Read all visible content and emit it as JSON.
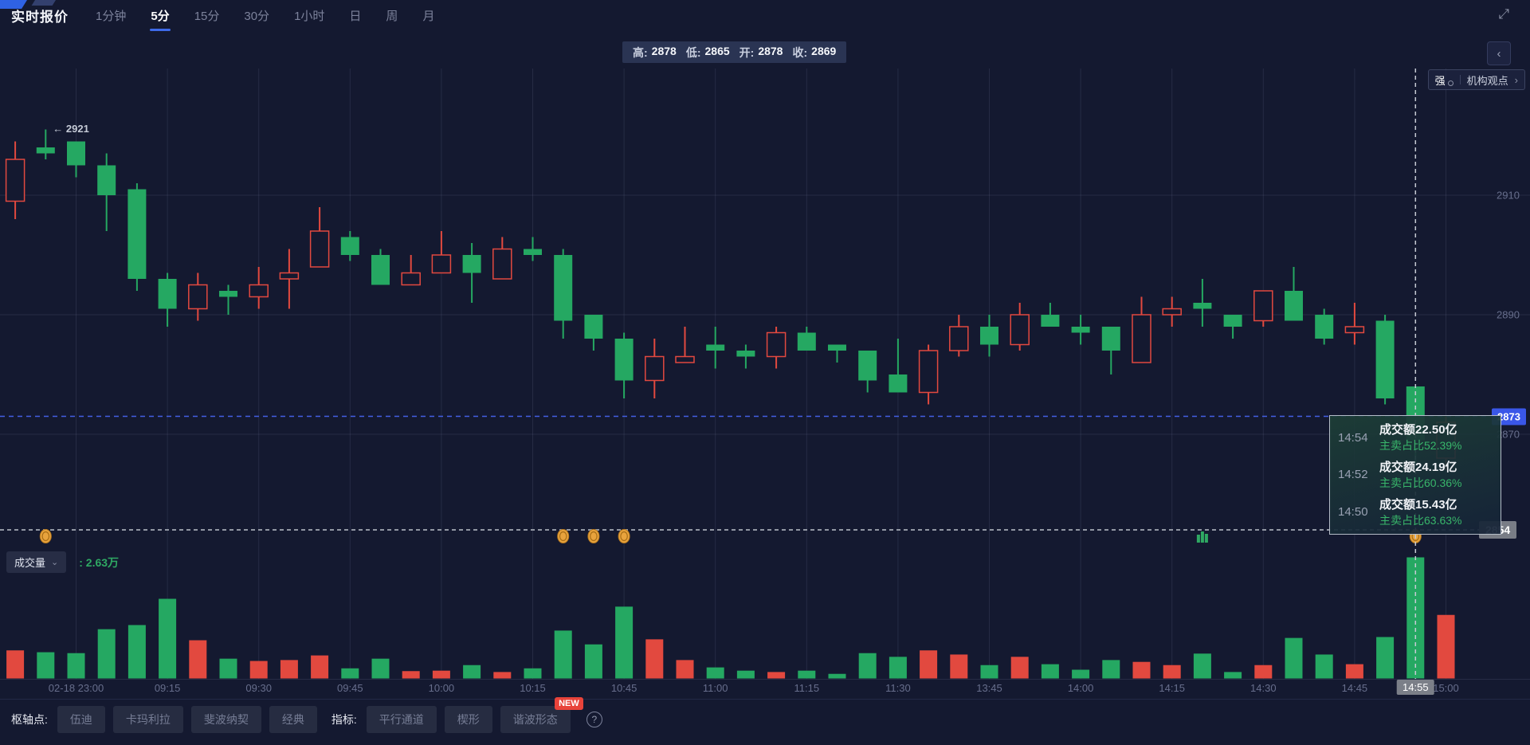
{
  "header": {
    "title": "实时报价",
    "tabs": [
      {
        "label": "1分钟",
        "active": false
      },
      {
        "label": "5分",
        "active": true
      },
      {
        "label": "15分",
        "active": false
      },
      {
        "label": "30分",
        "active": false
      },
      {
        "label": "1小时",
        "active": false
      },
      {
        "label": "日",
        "active": false
      },
      {
        "label": "周",
        "active": false
      },
      {
        "label": "月",
        "active": false
      }
    ]
  },
  "icons": {
    "expand": "⤢",
    "collapse": "‹",
    "dropdown": "⌄",
    "link_arrow": "›",
    "help": "?",
    "anno_arrow": "←"
  },
  "ohlc_bar": {
    "items": [
      {
        "label": "高:",
        "value": "2878"
      },
      {
        "label": "低:",
        "value": "2865"
      },
      {
        "label": "开:",
        "value": "2878"
      },
      {
        "label": "收:",
        "value": "2869"
      }
    ]
  },
  "top_right": {
    "strength_badge": "强",
    "institution_link": "机构观点"
  },
  "volume_header": {
    "label": "成交量",
    "value": ": 2.63万"
  },
  "tooltip": {
    "rows": [
      {
        "time": "14:54",
        "amount": "成交额22.50亿",
        "ratio": "主卖占比52.39%"
      },
      {
        "time": "14:52",
        "amount": "成交额24.19亿",
        "ratio": "主卖占比60.36%"
      },
      {
        "time": "14:50",
        "amount": "成交额15.43亿",
        "ratio": "主卖占比63.63%"
      }
    ]
  },
  "time_axis": {
    "labels": [
      "02-18 23:00",
      "09:15",
      "09:30",
      "09:45",
      "10:00",
      "10:15",
      "10:45",
      "11:00",
      "11:15",
      "11:30",
      "13:45",
      "14:00",
      "14:15",
      "14:30",
      "14:45",
      "15:00"
    ],
    "crosshair_label": "14:55"
  },
  "toolbar": {
    "pivot_label": "枢轴点:",
    "pivot_buttons": [
      "伍迪",
      "卡玛利拉",
      "斐波纳契",
      "经典"
    ],
    "indicator_label": "指标:",
    "indicator_buttons": [
      {
        "label": "平行通道"
      },
      {
        "label": "楔形"
      },
      {
        "label": "谐波形态",
        "badge": "NEW"
      }
    ]
  },
  "chart_data": {
    "type": "candlestick_with_volume",
    "interval": "5分",
    "columns": [
      "time",
      "open",
      "high",
      "low",
      "close",
      "volume_wan"
    ],
    "candles": [
      [
        "22:50",
        2909,
        2919,
        2906,
        2916,
        0.61
      ],
      [
        "22:55",
        2918,
        2921,
        2916,
        2917,
        0.57
      ],
      [
        "23:00",
        2919,
        2919,
        2913,
        2915,
        0.55
      ],
      [
        "09:05",
        2915,
        2917,
        2904,
        2910,
        1.07
      ],
      [
        "09:10",
        2911,
        2912,
        2894,
        2896,
        1.16
      ],
      [
        "09:15",
        2896,
        2897,
        2888,
        2891,
        1.73
      ],
      [
        "09:20",
        2891,
        2897,
        2889,
        2895,
        0.83
      ],
      [
        "09:25",
        2894,
        2895,
        2890,
        2893,
        0.43
      ],
      [
        "09:30",
        2893,
        2898,
        2891,
        2895,
        0.38
      ],
      [
        "09:35",
        2896,
        2901,
        2891,
        2897,
        0.4
      ],
      [
        "09:40",
        2898,
        2908,
        2898,
        2904,
        0.5
      ],
      [
        "09:45",
        2903,
        2904,
        2899,
        2900,
        0.22
      ],
      [
        "09:50",
        2900,
        2901,
        2895,
        2895,
        0.43
      ],
      [
        "09:55",
        2895,
        2900,
        2895,
        2897,
        0.16
      ],
      [
        "10:00",
        2897,
        2904,
        2897,
        2900,
        0.17
      ],
      [
        "10:05",
        2900,
        2902,
        2892,
        2897,
        0.29
      ],
      [
        "10:10",
        2896,
        2903,
        2896,
        2901,
        0.14
      ],
      [
        "10:15",
        2901,
        2903,
        2899,
        2900,
        0.22
      ],
      [
        "10:35",
        2900,
        2901,
        2886,
        2889,
        1.04
      ],
      [
        "10:40",
        2890,
        2890,
        2884,
        2886,
        0.74
      ],
      [
        "10:45",
        2886,
        2887,
        2876,
        2879,
        1.56
      ],
      [
        "10:50",
        2879,
        2886,
        2876,
        2883,
        0.85
      ],
      [
        "10:55",
        2882,
        2888,
        2882,
        2883,
        0.4
      ],
      [
        "11:00",
        2885,
        2888,
        2881,
        2884,
        0.24
      ],
      [
        "11:05",
        2884,
        2885,
        2881,
        2883,
        0.17
      ],
      [
        "11:10",
        2883,
        2888,
        2881,
        2887,
        0.14
      ],
      [
        "11:15",
        2887,
        2888,
        2884,
        2884,
        0.17
      ],
      [
        "11:20",
        2885,
        2885,
        2882,
        2884,
        0.1
      ],
      [
        "11:25",
        2884,
        2884,
        2877,
        2879,
        0.55
      ],
      [
        "11:30",
        2880,
        2886,
        2877,
        2877,
        0.47
      ],
      [
        "13:35",
        2877,
        2885,
        2875,
        2884,
        0.61
      ],
      [
        "13:40",
        2884,
        2890,
        2883,
        2888,
        0.52
      ],
      [
        "13:45",
        2888,
        2890,
        2883,
        2885,
        0.29
      ],
      [
        "13:50",
        2885,
        2892,
        2884,
        2890,
        0.47
      ],
      [
        "13:55",
        2890,
        2892,
        2888,
        2888,
        0.31
      ],
      [
        "14:00",
        2888,
        2890,
        2885,
        2887,
        0.19
      ],
      [
        "14:05",
        2888,
        2888,
        2880,
        2884,
        0.4
      ],
      [
        "14:10",
        2882,
        2893,
        2882,
        2890,
        0.36
      ],
      [
        "14:15",
        2890,
        2893,
        2888,
        2891,
        0.29
      ],
      [
        "14:20",
        2892,
        2896,
        2888,
        2891,
        0.54
      ],
      [
        "14:25",
        2890,
        2890,
        2886,
        2888,
        0.14
      ],
      [
        "14:30",
        2889,
        2894,
        2888,
        2894,
        0.29
      ],
      [
        "14:35",
        2894,
        2898,
        2889,
        2889,
        0.88
      ],
      [
        "14:40",
        2890,
        2891,
        2885,
        2886,
        0.52
      ],
      [
        "14:45",
        2887,
        2892,
        2885,
        2888,
        0.31
      ],
      [
        "14:50",
        2889,
        2890,
        2875,
        2876,
        0.9
      ],
      [
        "14:55",
        2878,
        2878,
        2865,
        2869,
        2.63
      ],
      [
        "15:00",
        2866,
        2873,
        2864,
        2872,
        1.38
      ]
    ],
    "price_axis_ticks": [
      "2910",
      "2890",
      "2870"
    ],
    "level_line": {
      "price": 2854,
      "label": "2854"
    },
    "crosshair": {
      "index": 46,
      "time": "14:55",
      "price": 2873,
      "price_label": "2873"
    },
    "annotation": {
      "text": "2921",
      "index": 1,
      "price": 2921
    },
    "current_volume": "2.63万",
    "markers": {
      "coin_indices": [
        1,
        18,
        19,
        20,
        46
      ],
      "histogram_icon_index": 39,
      "level_price": 2854
    },
    "colors": {
      "up": "#e2493f",
      "down": "#25a862",
      "background": "#141930",
      "crosshair_price": "#3a57e8",
      "level_badge": "#797d86",
      "grid": "rgba(148,158,190,0.14)"
    },
    "legend_note": "red hollow = up, green solid = down",
    "ylim": [
      2850,
      2925
    ],
    "grid": true
  }
}
